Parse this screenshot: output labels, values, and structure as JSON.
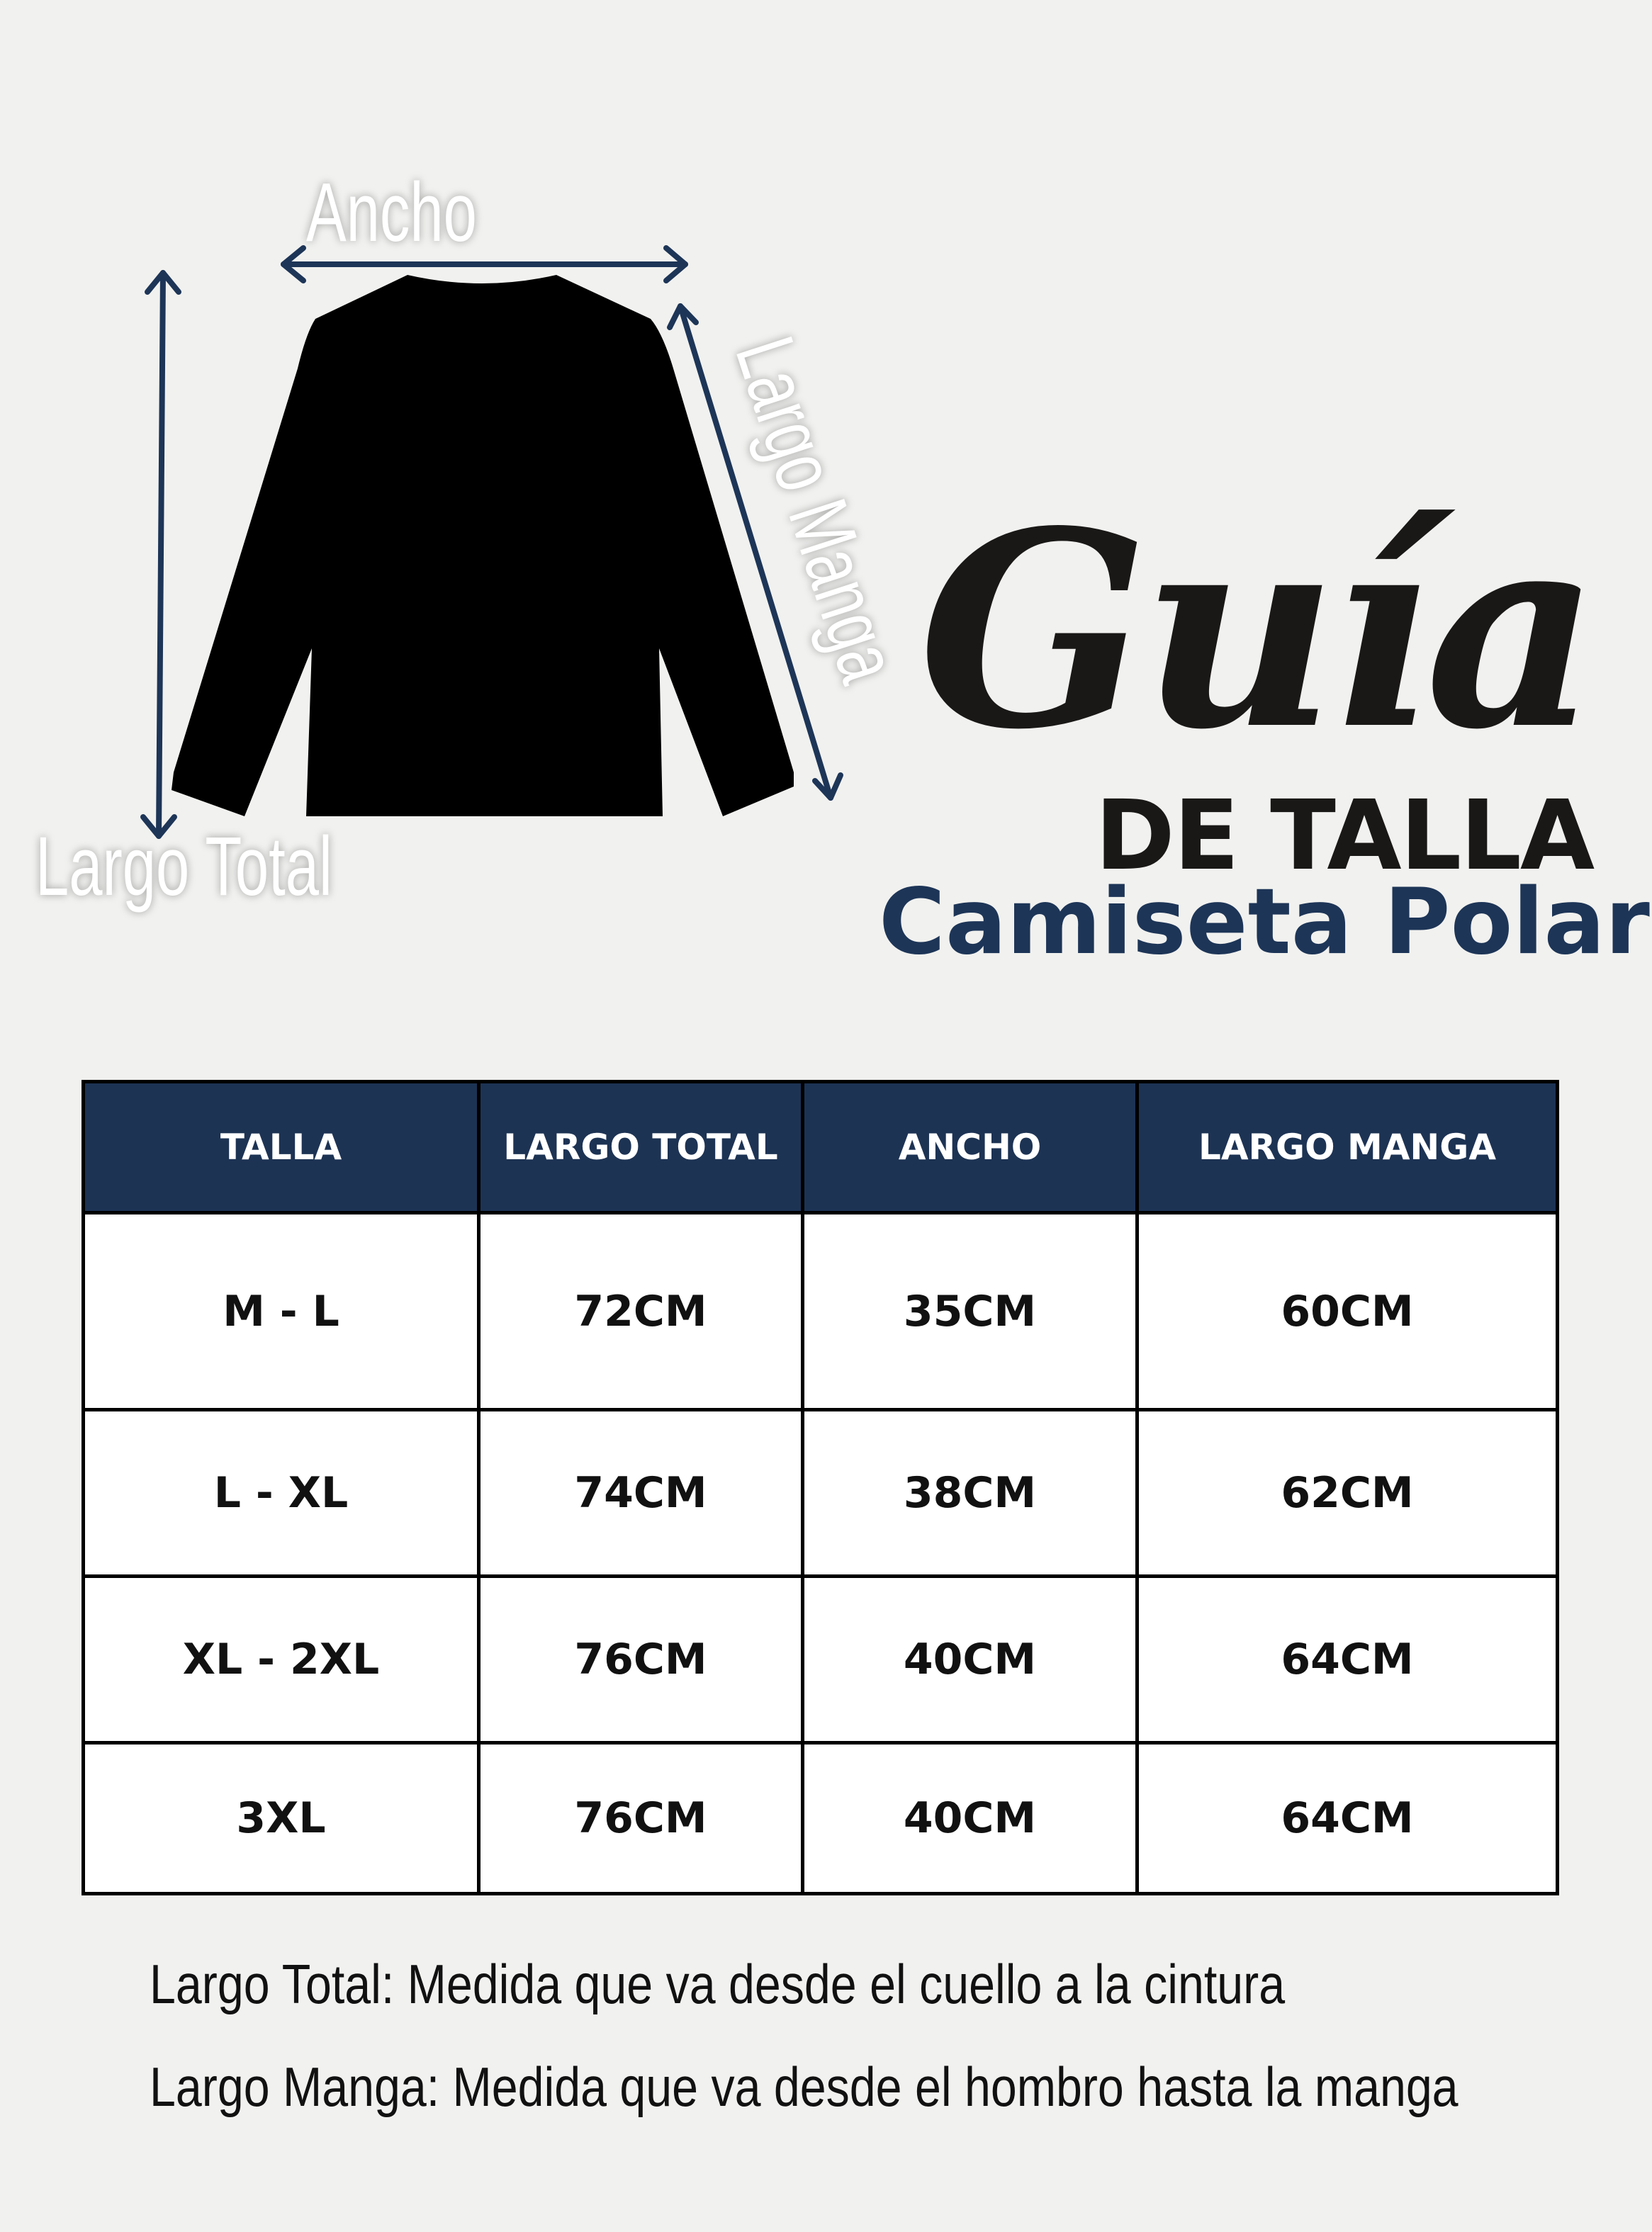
{
  "diagram": {
    "labels": {
      "ancho": "Ancho",
      "largo_total": "Largo Total",
      "largo_manga": "Largo Manga"
    },
    "arrow_color": "#1d3557",
    "garment_color": "#000000"
  },
  "title": {
    "script": "Guía",
    "subtitle": "DE TALLA",
    "product": "Camiseta Polar",
    "product_color": "#1d3557"
  },
  "table": {
    "header_color": "#1d3354",
    "headers": [
      "TALLA",
      "LARGO TOTAL",
      "ANCHO",
      "LARGO MANGA"
    ],
    "rows": [
      [
        "M - L",
        "72CM",
        "35CM",
        "60CM"
      ],
      [
        "L - XL",
        "74CM",
        "38CM",
        "62CM"
      ],
      [
        "XL - 2XL",
        "76CM",
        "40CM",
        "64CM"
      ],
      [
        "3XL",
        "76CM",
        "40CM",
        "64CM"
      ]
    ]
  },
  "notes": [
    "Largo Total: Medida que va desde el cuello a la cintura",
    "Largo Manga: Medida que va desde el hombro hasta la manga"
  ]
}
